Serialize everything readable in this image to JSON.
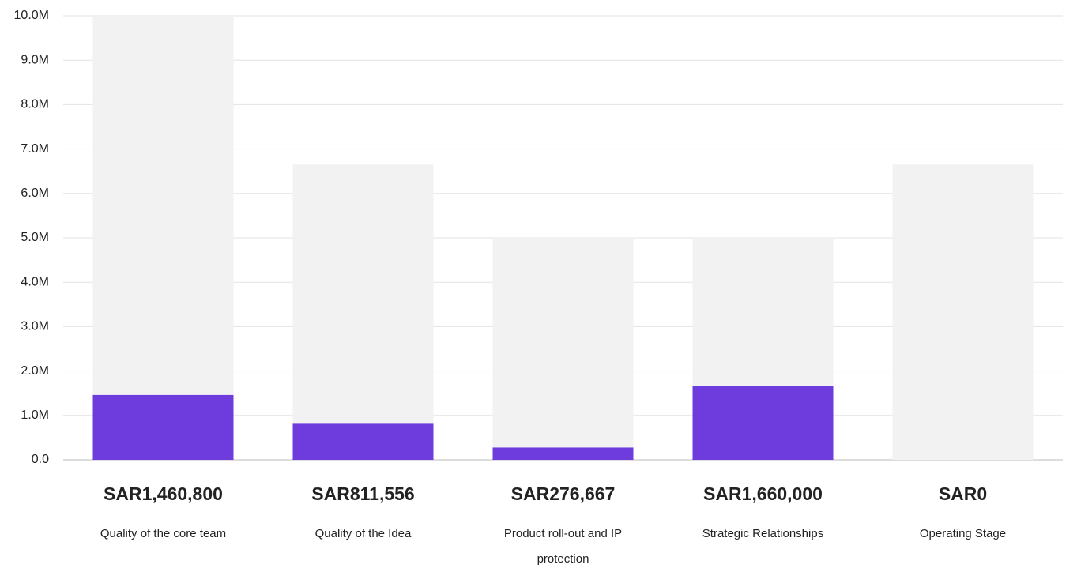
{
  "chart_data": {
    "type": "bar",
    "categories": [
      "Quality of the core team",
      "Quality of the Idea",
      "Product roll-out and IP protection",
      "Strategic Relationships",
      "Operating Stage"
    ],
    "series": [
      {
        "color": "#f2f2f2",
        "values": [
          10000000,
          6650000,
          5000000,
          5000000,
          6650000
        ]
      },
      {
        "color": "#6e3bdc",
        "values": [
          1460800,
          811556,
          276667,
          1660000,
          0
        ],
        "value_labels": [
          "SAR1,460,800",
          "SAR811,556",
          "SAR276,667",
          "SAR1,660,000",
          "SAR0"
        ]
      }
    ],
    "ylim": [
      0,
      10000000
    ],
    "yticks": [
      {
        "value": 0,
        "label": "0.0"
      },
      {
        "value": 1000000,
        "label": "1.0M"
      },
      {
        "value": 2000000,
        "label": "2.0M"
      },
      {
        "value": 3000000,
        "label": "3.0M"
      },
      {
        "value": 4000000,
        "label": "4.0M"
      },
      {
        "value": 5000000,
        "label": "5.0M"
      },
      {
        "value": 6000000,
        "label": "6.0M"
      },
      {
        "value": 7000000,
        "label": "7.0M"
      },
      {
        "value": 8000000,
        "label": "8.0M"
      },
      {
        "value": 9000000,
        "label": "9.0M"
      },
      {
        "value": 10000000,
        "label": "10.0M"
      }
    ],
    "grid": true
  }
}
